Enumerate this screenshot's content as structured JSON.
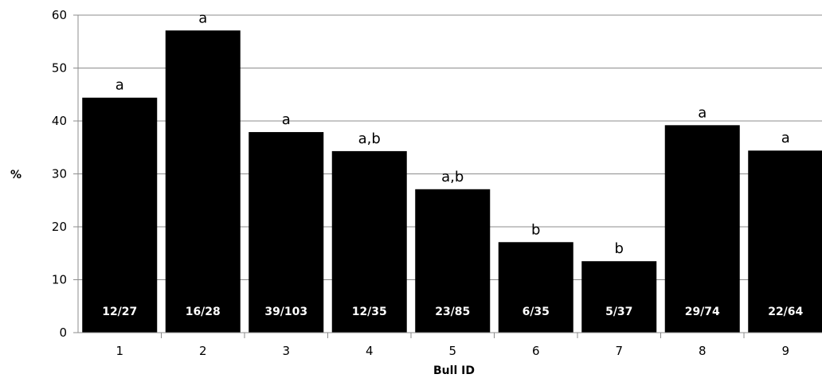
{
  "chart_data": {
    "type": "bar",
    "title": "",
    "xlabel": "Bull ID",
    "ylabel": "%",
    "ylim": [
      0,
      60
    ],
    "yticks": [
      "0",
      "10",
      "20",
      "30",
      "40",
      "50",
      "60"
    ],
    "grid": true,
    "categories": [
      "1",
      "2",
      "3",
      "4",
      "5",
      "6",
      "7",
      "8",
      "9"
    ],
    "values": [
      44.4,
      57.1,
      37.9,
      34.3,
      27.1,
      17.1,
      13.5,
      39.2,
      34.4
    ],
    "bar_color": "#000000",
    "significance_labels": [
      "a",
      "a",
      "a",
      "a,b",
      "a,b",
      "b",
      "b",
      "a",
      "a"
    ],
    "count_labels": [
      "12/27",
      "16/28",
      "39/103",
      "12/35",
      "23/85",
      "6/35",
      "5/37",
      "29/74",
      "22/64"
    ]
  }
}
